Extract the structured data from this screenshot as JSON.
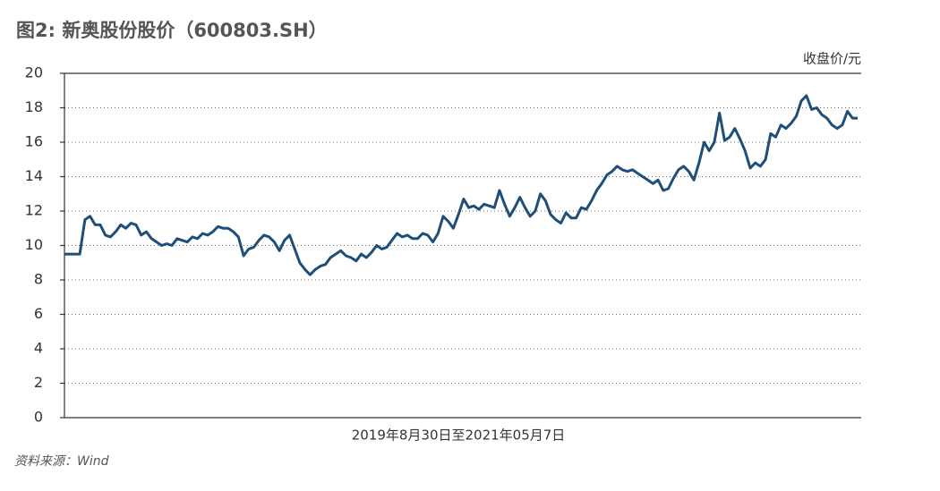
{
  "chart_data": {
    "type": "line",
    "title": "图2: 新奥股份股价（600803.SH）",
    "ylabel": "收盘价/元",
    "xlabel": "2019年8月30日至2021年05月7日",
    "source": "资料来源：Wind",
    "series": [
      {
        "name": "新奥股份",
        "color": "#1f4e79",
        "values": [
          9.5,
          9.5,
          9.5,
          9.5,
          11.5,
          11.7,
          11.2,
          11.2,
          10.6,
          10.5,
          10.8,
          11.2,
          11.0,
          11.3,
          11.2,
          10.6,
          10.8,
          10.4,
          10.2,
          10.0,
          10.1,
          10.0,
          10.4,
          10.3,
          10.2,
          10.5,
          10.4,
          10.7,
          10.6,
          10.8,
          11.1,
          11.0,
          11.0,
          10.8,
          10.5,
          9.4,
          9.8,
          9.9,
          10.3,
          10.6,
          10.5,
          10.2,
          9.7,
          10.3,
          10.6,
          9.8,
          9.0,
          8.6,
          8.3,
          8.6,
          8.8,
          8.9,
          9.3,
          9.5,
          9.7,
          9.4,
          9.3,
          9.1,
          9.5,
          9.3,
          9.6,
          10.0,
          9.8,
          9.9,
          10.3,
          10.7,
          10.5,
          10.6,
          10.4,
          10.4,
          10.7,
          10.6,
          10.2,
          10.7,
          11.7,
          11.4,
          11.0,
          11.8,
          12.7,
          12.2,
          12.3,
          12.1,
          12.4,
          12.3,
          12.2,
          13.2,
          12.4,
          11.7,
          12.2,
          12.8,
          12.2,
          11.7,
          12.0,
          13.0,
          12.6,
          11.8,
          11.5,
          11.3,
          11.9,
          11.6,
          11.6,
          12.2,
          12.1,
          12.6,
          13.2,
          13.6,
          14.1,
          14.3,
          14.6,
          14.4,
          14.3,
          14.4,
          14.2,
          14.0,
          13.8,
          13.6,
          13.8,
          13.2,
          13.3,
          13.9,
          14.4,
          14.6,
          14.3,
          13.8,
          14.8,
          16.0,
          15.5,
          16.0,
          17.7,
          16.1,
          16.3,
          16.8,
          16.2,
          15.5,
          14.5,
          14.8,
          14.6,
          15.0,
          16.5,
          16.3,
          17.0,
          16.8,
          17.1,
          17.5,
          18.4,
          18.7,
          17.9,
          18.0,
          17.6,
          17.4,
          17.0,
          16.8,
          17.0,
          17.8,
          17.4,
          17.4
        ]
      }
    ],
    "ylim": [
      0,
      20
    ],
    "yticks": [
      0,
      2,
      4,
      6,
      8,
      10,
      12,
      14,
      16,
      18,
      20
    ],
    "grid": true
  }
}
